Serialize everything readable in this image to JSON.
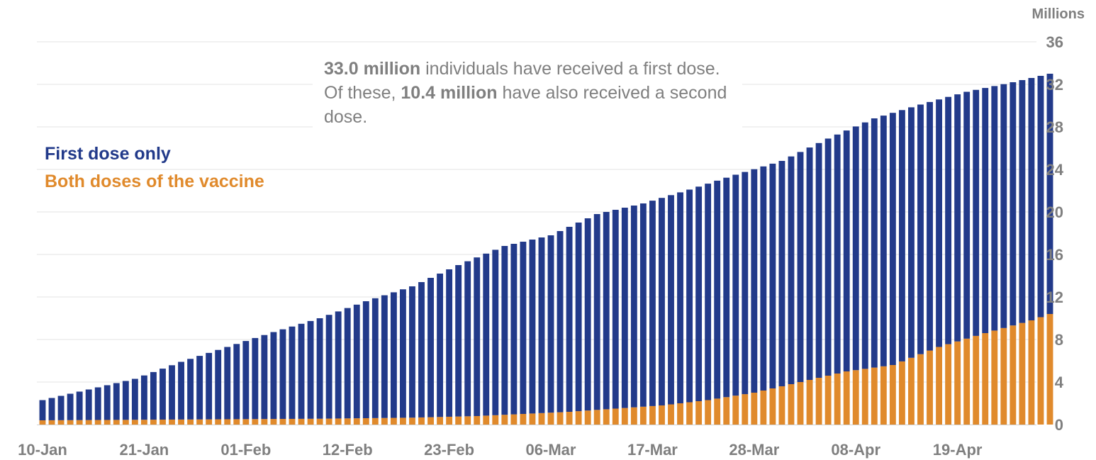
{
  "chart_data": {
    "type": "bar",
    "stacked": true,
    "yunit": "Millions",
    "ylim": [
      0,
      36
    ],
    "yticks": [
      0,
      4,
      8,
      12,
      16,
      20,
      24,
      28,
      32,
      36
    ],
    "xtick_labels": [
      "10-Jan",
      "21-Jan",
      "01-Feb",
      "12-Feb",
      "23-Feb",
      "06-Mar",
      "17-Mar",
      "28-Mar",
      "08-Apr",
      "19-Apr"
    ],
    "x_start": "10-Jan",
    "x_end": "19-Apr",
    "grid": true,
    "legend": [
      "First dose only",
      "Both doses of the vaccine"
    ],
    "series": [
      {
        "name": "Both doses of the vaccine",
        "color": "#e08a2c",
        "total_anchors": [
          [
            0,
            0.4
          ],
          [
            10,
            0.45
          ],
          [
            20,
            0.5
          ],
          [
            30,
            0.55
          ],
          [
            40,
            0.65
          ],
          [
            47,
            0.8
          ],
          [
            52,
            1.0
          ],
          [
            57,
            1.2
          ],
          [
            62,
            1.5
          ],
          [
            67,
            1.8
          ],
          [
            72,
            2.3
          ],
          [
            77,
            3.0
          ],
          [
            82,
            4.0
          ],
          [
            87,
            5.0
          ],
          [
            92,
            5.6
          ],
          [
            97,
            7.3
          ],
          [
            102,
            8.6
          ],
          [
            107,
            9.8
          ],
          [
            108,
            10.1
          ],
          [
            109,
            10.4
          ]
        ]
      },
      {
        "name": "First dose only",
        "color": "#223a8a",
        "total_anchors": [
          [
            0,
            2.3
          ],
          [
            5,
            3.3
          ],
          [
            10,
            4.3
          ],
          [
            15,
            5.9
          ],
          [
            20,
            7.3
          ],
          [
            25,
            8.7
          ],
          [
            30,
            10.0
          ],
          [
            35,
            11.6
          ],
          [
            40,
            13.0
          ],
          [
            45,
            15.0
          ],
          [
            50,
            16.8
          ],
          [
            55,
            17.8
          ],
          [
            60,
            19.8
          ],
          [
            65,
            20.8
          ],
          [
            70,
            22.1
          ],
          [
            75,
            23.5
          ],
          [
            80,
            24.8
          ],
          [
            85,
            26.9
          ],
          [
            90,
            28.8
          ],
          [
            95,
            30.1
          ],
          [
            100,
            31.3
          ],
          [
            105,
            32.2
          ],
          [
            109,
            33.0
          ]
        ]
      }
    ]
  },
  "annotation": {
    "bold1": "33.0 million",
    "text1": " individuals have received a first dose. Of these, ",
    "bold2": "10.4 million",
    "text2": " have also received a second dose."
  }
}
